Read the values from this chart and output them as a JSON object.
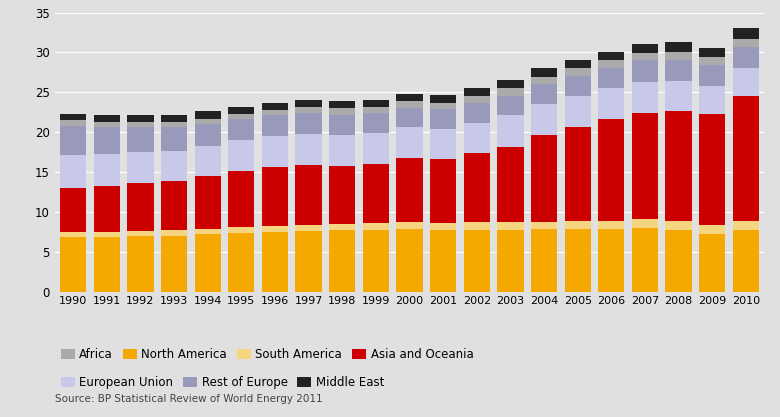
{
  "years": [
    1990,
    1991,
    1992,
    1993,
    1994,
    1995,
    1996,
    1997,
    1998,
    1999,
    2000,
    2001,
    2002,
    2003,
    2004,
    2005,
    2006,
    2007,
    2008,
    2009,
    2010
  ],
  "north_america": [
    6.9,
    6.9,
    7.0,
    7.0,
    7.2,
    7.4,
    7.5,
    7.6,
    7.7,
    7.8,
    7.9,
    7.7,
    7.8,
    7.8,
    7.9,
    7.9,
    7.9,
    8.0,
    7.8,
    7.3,
    7.7
  ],
  "south_america": [
    0.6,
    0.6,
    0.6,
    0.7,
    0.7,
    0.7,
    0.7,
    0.8,
    0.8,
    0.8,
    0.9,
    0.9,
    0.9,
    0.9,
    0.9,
    1.0,
    1.0,
    1.1,
    1.1,
    1.1,
    1.2
  ],
  "asia_oceania": [
    5.5,
    5.8,
    6.0,
    6.2,
    6.6,
    7.1,
    7.4,
    7.5,
    7.3,
    7.4,
    8.0,
    8.0,
    8.7,
    9.5,
    10.8,
    11.8,
    12.7,
    13.3,
    13.7,
    13.9,
    15.6
  ],
  "european_union": [
    4.2,
    4.0,
    3.9,
    3.8,
    3.8,
    3.8,
    3.9,
    3.9,
    3.9,
    3.9,
    3.8,
    3.8,
    3.8,
    3.9,
    3.9,
    3.9,
    3.9,
    3.9,
    3.8,
    3.5,
    3.5
  ],
  "rest_of_europe": [
    3.6,
    3.3,
    3.1,
    2.9,
    2.7,
    2.6,
    2.6,
    2.6,
    2.5,
    2.5,
    2.5,
    2.5,
    2.5,
    2.5,
    2.5,
    2.5,
    2.6,
    2.7,
    2.7,
    2.6,
    2.7
  ],
  "africa": [
    0.7,
    0.7,
    0.7,
    0.7,
    0.7,
    0.7,
    0.7,
    0.8,
    0.8,
    0.8,
    0.8,
    0.8,
    0.8,
    0.9,
    0.9,
    0.9,
    0.9,
    0.9,
    1.0,
    1.0,
    1.0
  ],
  "middle_east": [
    0.8,
    0.8,
    0.8,
    0.9,
    0.9,
    0.9,
    0.9,
    0.9,
    0.9,
    0.9,
    0.9,
    1.0,
    1.0,
    1.0,
    1.1,
    1.1,
    1.1,
    1.2,
    1.2,
    1.2,
    1.3
  ],
  "colors": {
    "north_america": "#F5A800",
    "south_america": "#F5D580",
    "asia_oceania": "#CC0000",
    "european_union": "#C8C8E8",
    "rest_of_europe": "#9999BB",
    "africa": "#AAAAAA",
    "middle_east": "#222222"
  },
  "source_text": "Source: BP Statistical Review of World Energy 2011",
  "ylim": [
    0,
    35
  ],
  "yticks": [
    0,
    5,
    10,
    15,
    20,
    25,
    30,
    35
  ],
  "background_color": "#E0E0E0",
  "plot_area_color": "#E0E0E0",
  "figsize": [
    7.8,
    4.17
  ],
  "dpi": 100
}
